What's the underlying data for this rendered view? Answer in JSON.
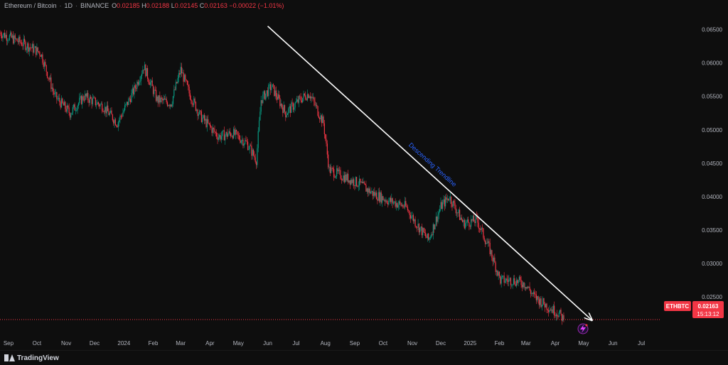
{
  "header": {
    "symbol": "Ethereum / Bitcoin",
    "interval": "1D",
    "exchange": "BINANCE",
    "open_label": "O",
    "open": "0.02185",
    "high_label": "H",
    "high": "0.02188",
    "low_label": "L",
    "low": "0.02145",
    "close_label": "C",
    "close": "0.02163",
    "change": "−0.00022 (−1.01%)"
  },
  "price_tag": {
    "ticker": "ETHBTC",
    "price": "0.02163",
    "countdown": "15:13:12"
  },
  "annotation": {
    "label": "Descending Trendline"
  },
  "footer": {
    "brand": "TradingView"
  },
  "colors": {
    "up": "#089981",
    "down": "#f23645",
    "background": "#0e0e0e",
    "trendline": "#ffffff",
    "annotation_text": "#2962ff",
    "price_line": "#f23645"
  },
  "icons": {
    "event_marker": "lightning-icon",
    "logo": "tradingview-logo"
  },
  "chart_data": {
    "type": "candlestick",
    "title": "Ethereum / Bitcoin · 1D · BINANCE",
    "y_ticks": [
      "0.06500",
      "0.06000",
      "0.05500",
      "0.05000",
      "0.04500",
      "0.04000",
      "0.03500",
      "0.03000",
      "0.02500"
    ],
    "y_tick_values": [
      0.065,
      0.06,
      0.055,
      0.05,
      0.045,
      0.04,
      0.035,
      0.03,
      0.025
    ],
    "ylim": [
      0.0195,
      0.0675
    ],
    "x_ticks": [
      "Sep",
      "Oct",
      "Nov",
      "Dec",
      "2024",
      "Feb",
      "Mar",
      "Apr",
      "May",
      "Jun",
      "Jul",
      "Aug",
      "Sep",
      "Oct",
      "Nov",
      "Dec",
      "2025",
      "Feb",
      "Mar",
      "Apr",
      "May",
      "Jun",
      "Jul"
    ],
    "x_tick_dates": [
      "2023-09-01",
      "2023-10-01",
      "2023-11-01",
      "2023-12-01",
      "2024-01-01",
      "2024-02-01",
      "2024-03-01",
      "2024-04-01",
      "2024-05-01",
      "2024-06-01",
      "2024-07-01",
      "2024-08-01",
      "2024-09-01",
      "2024-10-01",
      "2024-11-01",
      "2024-12-01",
      "2025-01-01",
      "2025-02-01",
      "2025-03-01",
      "2025-04-01",
      "2025-05-01",
      "2025-06-01",
      "2025-07-01"
    ],
    "xlim": [
      "2023-08-23",
      "2025-07-22"
    ],
    "last_close": 0.02163,
    "price_trend": [
      {
        "date": "2023-08-23",
        "price": 0.0645
      },
      {
        "date": "2023-09-15",
        "price": 0.063
      },
      {
        "date": "2023-10-05",
        "price": 0.0615
      },
      {
        "date": "2023-10-20",
        "price": 0.055
      },
      {
        "date": "2023-11-05",
        "price": 0.0525
      },
      {
        "date": "2023-11-20",
        "price": 0.055
      },
      {
        "date": "2023-12-10",
        "price": 0.0535
      },
      {
        "date": "2023-12-25",
        "price": 0.051
      },
      {
        "date": "2024-01-12",
        "price": 0.056
      },
      {
        "date": "2024-01-22",
        "price": 0.0595
      },
      {
        "date": "2024-02-05",
        "price": 0.0545
      },
      {
        "date": "2024-02-20",
        "price": 0.054
      },
      {
        "date": "2024-03-01",
        "price": 0.059
      },
      {
        "date": "2024-03-10",
        "price": 0.0555
      },
      {
        "date": "2024-03-22",
        "price": 0.052
      },
      {
        "date": "2024-04-10",
        "price": 0.049
      },
      {
        "date": "2024-04-25",
        "price": 0.0495
      },
      {
        "date": "2024-05-10",
        "price": 0.048
      },
      {
        "date": "2024-05-20",
        "price": 0.0455
      },
      {
        "date": "2024-05-25",
        "price": 0.0545
      },
      {
        "date": "2024-06-05",
        "price": 0.0565
      },
      {
        "date": "2024-06-20",
        "price": 0.0525
      },
      {
        "date": "2024-07-05",
        "price": 0.0545
      },
      {
        "date": "2024-07-15",
        "price": 0.0555
      },
      {
        "date": "2024-07-30",
        "price": 0.051
      },
      {
        "date": "2024-08-05",
        "price": 0.044
      },
      {
        "date": "2024-08-20",
        "price": 0.043
      },
      {
        "date": "2024-09-05",
        "price": 0.042
      },
      {
        "date": "2024-09-20",
        "price": 0.0405
      },
      {
        "date": "2024-10-05",
        "price": 0.0395
      },
      {
        "date": "2024-10-25",
        "price": 0.0385
      },
      {
        "date": "2024-11-05",
        "price": 0.036
      },
      {
        "date": "2024-11-18",
        "price": 0.0335
      },
      {
        "date": "2024-12-01",
        "price": 0.0385
      },
      {
        "date": "2024-12-10",
        "price": 0.04
      },
      {
        "date": "2024-12-25",
        "price": 0.036
      },
      {
        "date": "2025-01-08",
        "price": 0.0365
      },
      {
        "date": "2025-01-22",
        "price": 0.032
      },
      {
        "date": "2025-02-02",
        "price": 0.0275
      },
      {
        "date": "2025-02-15",
        "price": 0.0275
      },
      {
        "date": "2025-02-28",
        "price": 0.027
      },
      {
        "date": "2025-03-10",
        "price": 0.025
      },
      {
        "date": "2025-03-25",
        "price": 0.0235
      },
      {
        "date": "2025-04-05",
        "price": 0.0225
      },
      {
        "date": "2025-04-10",
        "price": 0.02163
      }
    ],
    "trendline": {
      "from": {
        "date": "2024-06-01",
        "price": 0.0655
      },
      "to": {
        "date": "2025-05-10",
        "price": 0.0215
      }
    },
    "trendline_label": "Descending Trendline"
  }
}
